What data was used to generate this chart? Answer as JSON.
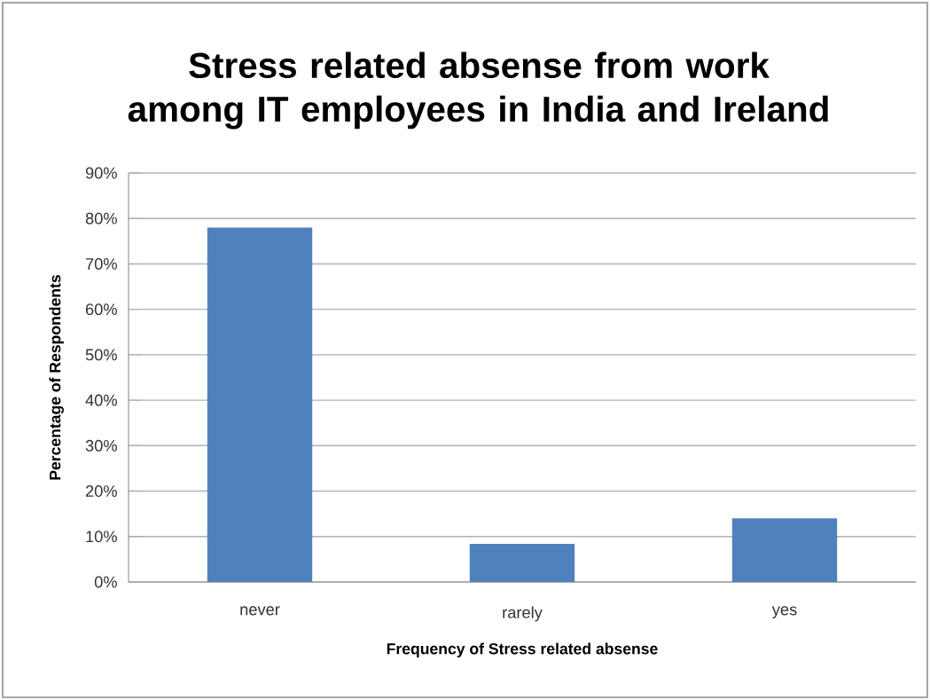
{
  "chart_data": {
    "type": "bar",
    "title": "Stress related absense from work among IT employees in India and Ireland",
    "xlabel": "Frequency of Stress related absense",
    "ylabel": "Percentage of Respondents",
    "categories": [
      "never",
      "rarely",
      "yes"
    ],
    "values": [
      78,
      8.4,
      14
    ],
    "color": "#4f81bd",
    "ylim": [
      0,
      90
    ],
    "yticks": [
      {
        "value": 0,
        "label": "0%"
      },
      {
        "value": 10,
        "label": "10%"
      },
      {
        "value": 20,
        "label": "20%"
      },
      {
        "value": 30,
        "label": "30%"
      },
      {
        "value": 40,
        "label": "40%"
      },
      {
        "value": 50,
        "label": "50%"
      },
      {
        "value": 60,
        "label": "60%"
      },
      {
        "value": 70,
        "label": "70%"
      },
      {
        "value": 80,
        "label": "80%"
      },
      {
        "value": 90,
        "label": "90%"
      }
    ],
    "grid": "y"
  }
}
